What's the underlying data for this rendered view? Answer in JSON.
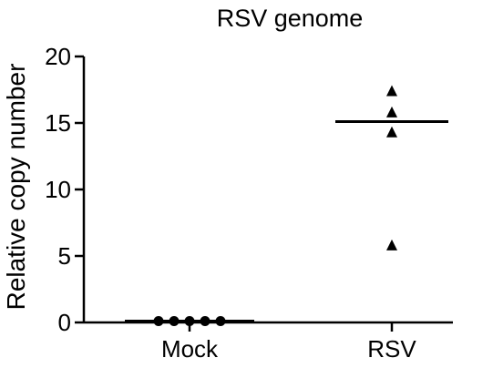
{
  "chart_data": {
    "type": "scatter",
    "title": "RSV genome",
    "xlabel": "",
    "ylabel": "Relative copy number",
    "ylim": [
      0,
      20
    ],
    "yticks": [
      0,
      5,
      10,
      15,
      20
    ],
    "categories": [
      "Mock",
      "RSV"
    ],
    "series": [
      {
        "category": "Mock",
        "marker": "circle",
        "values": [
          0.1,
          0.1,
          0.1,
          0.1,
          0.1
        ],
        "median": 0.1
      },
      {
        "category": "RSV",
        "marker": "triangle",
        "values": [
          17.4,
          15.8,
          14.3,
          5.8
        ],
        "median": 15.1
      }
    ],
    "grid": false,
    "legend": "none"
  }
}
